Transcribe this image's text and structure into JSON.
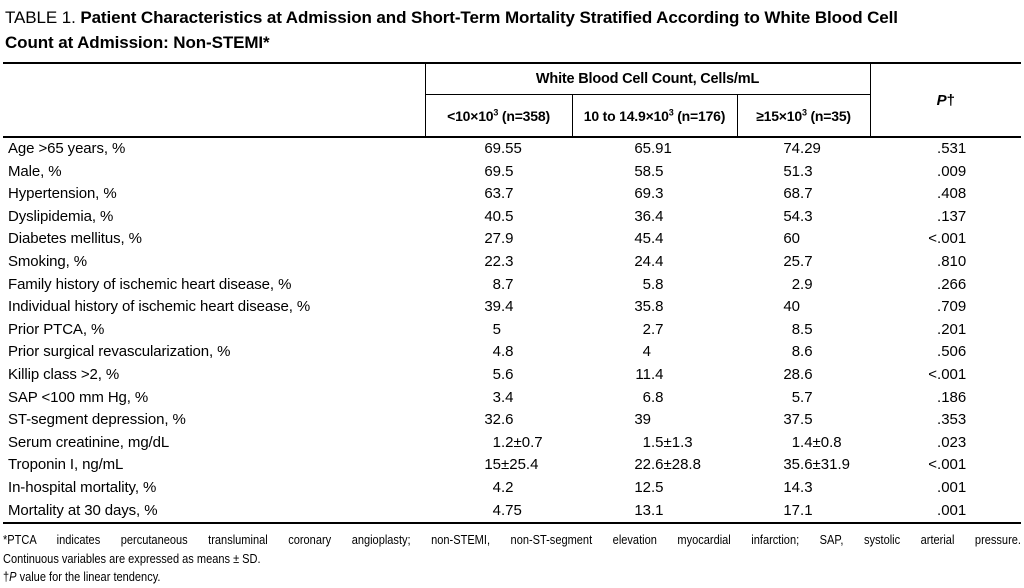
{
  "title": {
    "prefix": "TABLE 1. ",
    "line1": "Patient Characteristics at Admission and Short-Term Mortality Stratified According to White Blood Cell",
    "line2": "Count at Admission: Non-STEMI*"
  },
  "table": {
    "group_header": "White Blood Cell Count, Cells/mL",
    "p_header": {
      "italic": "P",
      "dagger": "†"
    },
    "columns": [
      {
        "pre": "<10×10",
        "sup": "3",
        "post": " (n=358)"
      },
      {
        "pre": "10 to 14.9×10",
        "sup": "3",
        "post": " (n=176)"
      },
      {
        "pre": "≥15×10",
        "sup": "3",
        "post": " (n=35)"
      }
    ],
    "rows": [
      {
        "label": "Age >65 years, %",
        "values": [
          "69.55",
          "65.91",
          "74.29",
          ".531"
        ]
      },
      {
        "label": "Male, %",
        "values": [
          "69.5",
          "58.5",
          "51.3",
          ".009"
        ]
      },
      {
        "label": "Hypertension, %",
        "values": [
          "63.7",
          "69.3",
          "68.7",
          ".408"
        ]
      },
      {
        "label": "Dyslipidemia, %",
        "values": [
          "40.5",
          "36.4",
          "54.3",
          ".137"
        ]
      },
      {
        "label": "Diabetes mellitus, %",
        "values": [
          "27.9",
          "45.4",
          "60",
          "<.001"
        ]
      },
      {
        "label": "Smoking, %",
        "values": [
          "22.3",
          "24.4",
          "25.7",
          ".810"
        ]
      },
      {
        "label": "Family history of ischemic heart disease, %",
        "values": [
          "8.7",
          "5.8",
          "2.9",
          ".266"
        ]
      },
      {
        "label": "Individual history of ischemic heart disease, %",
        "values": [
          "39.4",
          "35.8",
          "40",
          ".709"
        ]
      },
      {
        "label": "Prior PTCA, %",
        "values": [
          "5",
          "2.7",
          "8.5",
          ".201"
        ]
      },
      {
        "label": "Prior surgical revascularization, %",
        "values": [
          "4.8",
          "4",
          "8.6",
          ".506"
        ]
      },
      {
        "label": "Killip class >2, %",
        "values": [
          "5.6",
          "11.4",
          "28.6",
          "<.001"
        ]
      },
      {
        "label": "SAP <100 mm Hg, %",
        "values": [
          "3.4",
          "6.8",
          "5.7",
          ".186"
        ]
      },
      {
        "label": "ST-segment depression, %",
        "values": [
          "32.6",
          "39",
          "37.5",
          ".353"
        ]
      },
      {
        "label": "Serum creatinine, mg/dL",
        "values": [
          "1.2±0.7",
          "1.5±1.3",
          "1.4±0.8",
          ".023"
        ]
      },
      {
        "label": "Troponin I, ng/mL",
        "values": [
          "15±25.4",
          "22.6±28.8",
          "35.6±31.9",
          "<.001"
        ]
      },
      {
        "label": "In-hospital mortality, %",
        "values": [
          "4.2",
          "12.5",
          "14.3",
          ".001"
        ]
      },
      {
        "label": "Mortality at 30 days, %",
        "values": [
          "4.75",
          "13.1",
          "17.1",
          ".001"
        ]
      }
    ]
  },
  "footnotes": {
    "line1": "*PTCA indicates percutaneous transluminal coronary angioplasty; non-STEMI, non-ST-segment elevation myocardial infarction; SAP, systolic arterial pressure.",
    "line2": "Continuous variables are expressed as means ± SD.",
    "line3": {
      "dagger": "†",
      "italic": "P",
      "rest": " value for the linear tendency."
    }
  }
}
